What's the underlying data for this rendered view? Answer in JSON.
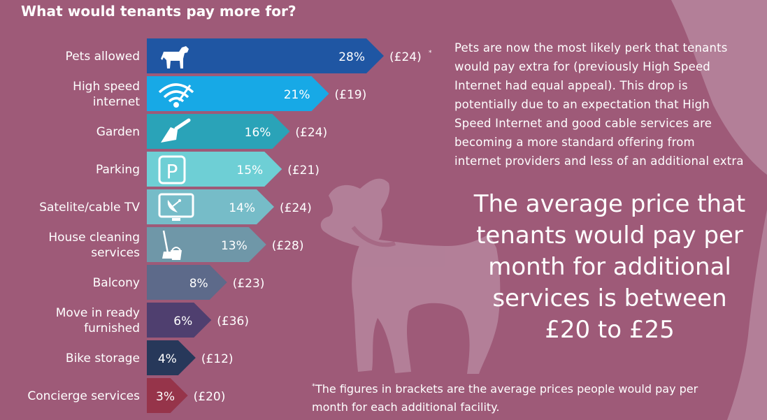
{
  "chart_data": {
    "type": "bar",
    "title": "What would tenants pay more for?",
    "categories": [
      "Pets allowed",
      "High speed\ninternet",
      "Garden",
      "Parking",
      "Satelite/cable TV",
      "House cleaning\nservices",
      "Balcony",
      "Move in ready\nfurnished",
      "Bike storage",
      "Concierge services"
    ],
    "values": [
      28,
      21,
      16,
      15,
      14,
      13,
      8,
      6,
      4,
      3
    ],
    "value_labels": [
      "28%",
      "21%",
      "16%",
      "15%",
      "14%",
      "13%",
      "8%",
      "6%",
      "4%",
      "3%"
    ],
    "prices": [
      "(£24)",
      "(£19)",
      "(£24)",
      "(£21)",
      "(£24)",
      "(£28)",
      "(£23)",
      "(£36)",
      "(£12)",
      "(£20)"
    ],
    "price_footnote_marker": "*",
    "icons": [
      "dog-icon",
      "wifi-icon",
      "trowel-icon",
      "parking-icon",
      "tv-dish-icon",
      "mop-bucket-icon",
      "",
      "",
      "",
      ""
    ],
    "colors": [
      "#1f56a3",
      "#17a9e6",
      "#2aa3b8",
      "#6ecfd5",
      "#76bcc8",
      "#6f97a8",
      "#5d6a8a",
      "#4f3f6f",
      "#27385a",
      "#96344a"
    ],
    "xlabel": "",
    "ylabel": "",
    "xlim": [
      0,
      28
    ],
    "grid": false,
    "legend": "none"
  },
  "description": "Pets are now the most likely perk that tenants\nwould pay extra for (previously High Speed\nInternet had equal appeal). This drop is\npotentially due to an expectation that High\nSpeed Internet and good cable services are\nbecoming a more standard offering from\ninternet providers and less of an additional extra",
  "headline": "The average price that\ntenants would pay per\nmonth for additional\nservices is between\n£20 to £25",
  "footnote": {
    "marker": "*",
    "text": "The figures in brackets are the average prices people would pay per\nmonth for each additional facility."
  },
  "colors": {
    "background": "#9e5a78",
    "dog_silhouette": "#b98ca3",
    "text": "#ffffff"
  }
}
